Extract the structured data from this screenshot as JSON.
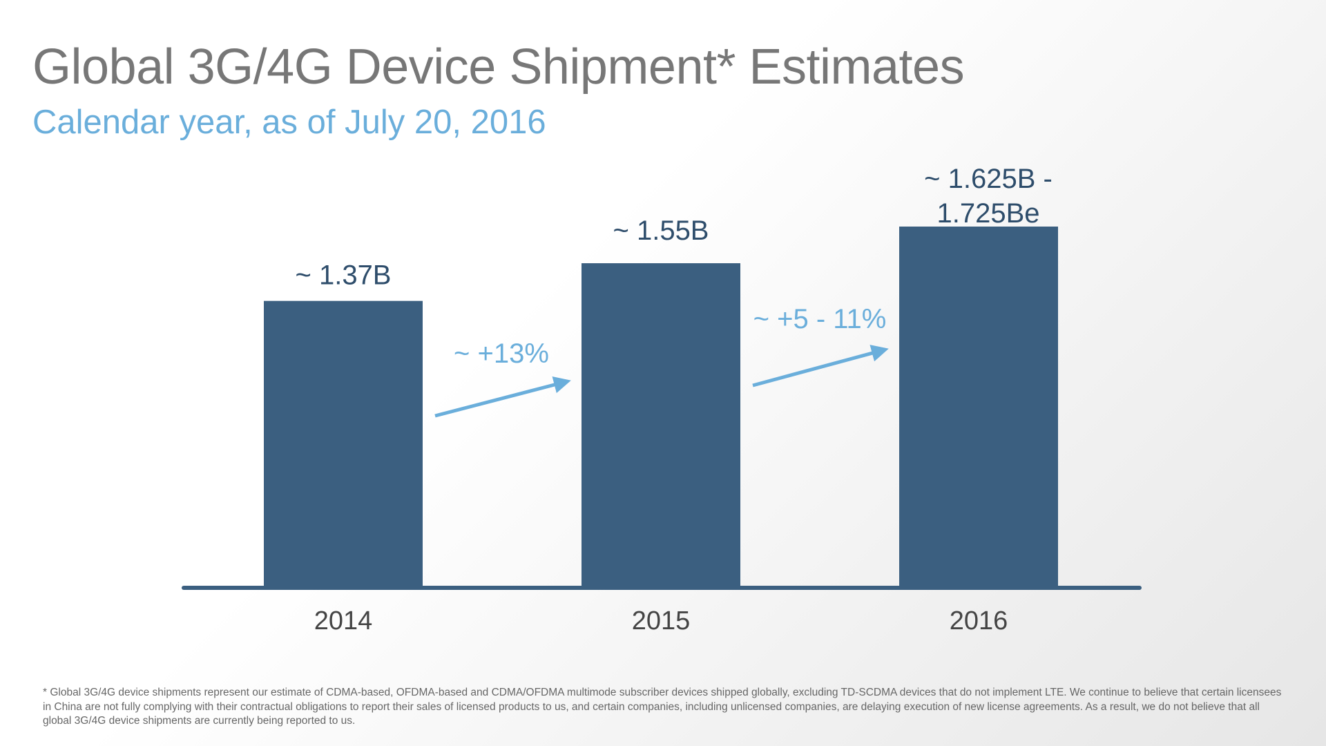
{
  "slide": {
    "title": "Global 3G/4G Device Shipment* Estimates",
    "subtitle": "Calendar year, as of July 20, 2016",
    "footnote": "* Global 3G/4G device shipments represent our estimate of CDMA-based, OFDMA-based and CDMA/OFDMA multimode subscriber devices shipped globally, excluding TD-SCDMA devices that do not implement LTE. We continue to believe that certain licensees in China are not fully complying with their contractual obligations to report their sales of licensed products to us, and certain companies, including unlicensed companies, are delaying execution of new license agreements. As a result, we do not believe that all global 3G/4G device shipments are currently being reported to us."
  },
  "colors": {
    "bar": "#3b5f80",
    "axis": "#3b5f80",
    "label": "#2e4d6b",
    "growth": "#6aaedb",
    "tick": "#444444"
  },
  "chart_data": {
    "type": "bar",
    "categories": [
      "2014",
      "2015",
      "2016"
    ],
    "values": [
      1.37,
      1.55,
      1.725
    ],
    "value_labels": [
      [
        "~ 1.37B"
      ],
      [
        "~ 1.55B"
      ],
      [
        "~ 1.625B -",
        "1.725Be"
      ]
    ],
    "growth_annotations": [
      {
        "label": "~ +13%",
        "from": "2014",
        "to": "2015"
      },
      {
        "label": "~ +5 - 11%",
        "from": "2015",
        "to": "2016"
      }
    ],
    "unit": "B",
    "ylim": [
      0,
      1.725
    ],
    "grid": false
  }
}
